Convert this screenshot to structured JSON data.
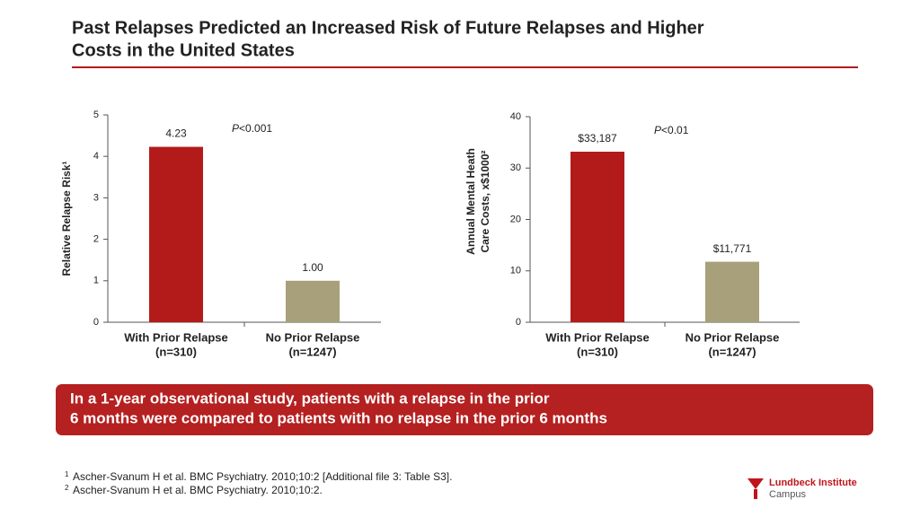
{
  "title": [
    "Past Relapses Predicted an Increased Risk of Future Relapses and Higher",
    "Costs in the United States"
  ],
  "chart_data": [
    {
      "type": "bar",
      "ylabel": [
        "Relative Relapse Risk¹"
      ],
      "categories": [
        [
          "With Prior Relapse",
          "(n=310)"
        ],
        [
          "No Prior Relapse",
          "(n=1247)"
        ]
      ],
      "values": [
        4.23,
        1.0
      ],
      "value_labels": [
        "4.23",
        "1.00"
      ],
      "colors": [
        "#b31b1b",
        "#a8a07a"
      ],
      "annotation": {
        "italic": "P",
        "text": "<0.001"
      },
      "ylim": [
        0,
        5
      ],
      "yticks": [
        0,
        1,
        2,
        3,
        4,
        5
      ]
    },
    {
      "type": "bar",
      "ylabel": [
        "Annual Mental Heath",
        "Care Costs, x$1000²"
      ],
      "categories": [
        [
          "With Prior Relapse",
          "(n=310)"
        ],
        [
          "No Prior Relapse",
          "(n=1247)"
        ]
      ],
      "values": [
        33.187,
        11.771
      ],
      "value_labels": [
        "$33,187",
        "$11,771"
      ],
      "colors": [
        "#b31b1b",
        "#a8a07a"
      ],
      "annotation": {
        "italic": "P",
        "text": "<0.01"
      },
      "ylim": [
        0,
        40
      ],
      "yticks": [
        0,
        10,
        20,
        30,
        40
      ]
    }
  ],
  "banner": [
    "In a 1-year observational study, patients with a relapse in the prior",
    "6 months were compared to patients with no relapse in the prior 6 months"
  ],
  "footnotes": [
    {
      "number": "1",
      "text": "Ascher-Svanum H et al. BMC Psychiatry. 2010;10:2 [Additional file 3: Table S3]."
    },
    {
      "number": "2",
      "text": "Ascher-Svanum H et al. BMC Psychiatry. 2010;10:2."
    }
  ],
  "logo": [
    "Lundbeck Institute",
    "Campus"
  ]
}
